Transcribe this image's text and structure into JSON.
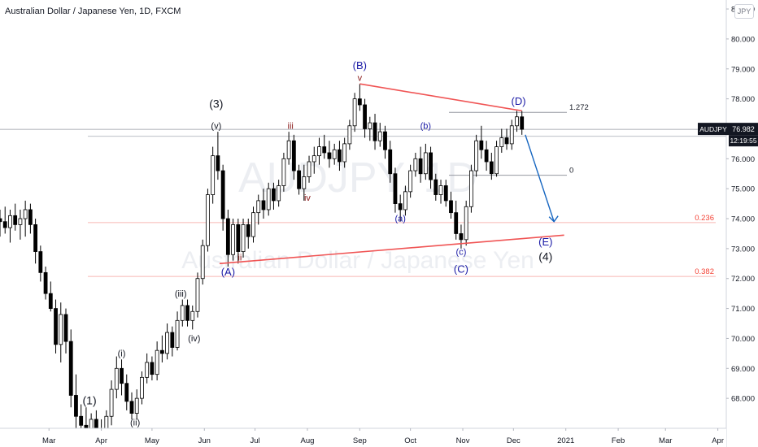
{
  "header": {
    "title": "Australian Dollar / Japanese Yen, 1D, FXCM"
  },
  "currency_badge": "JPY",
  "price_tag": {
    "symbol": "AUDJPY",
    "price": "76.982",
    "countdown": "12:19:55"
  },
  "watermark": {
    "symbol": "AUDJPY, 1D",
    "name": "Australian Dollar / Japanese Yen"
  },
  "colors": {
    "up": "#ffffff",
    "down": "#000000",
    "trendline": "#f05454",
    "wave_blue": "#1a1aa6",
    "wave_dark": "#131722",
    "wave_red": "#8b1a1a",
    "fib": "#f44336",
    "arrow": "#1565c0"
  },
  "chart_data": {
    "type": "candlestick",
    "symbol": "AUDJPY",
    "timeframe": "1D",
    "x_ticks": [
      "Mar",
      "Apr",
      "May",
      "Jun",
      "Jul",
      "Aug",
      "Sep",
      "Oct",
      "Nov",
      "Dec",
      "2021",
      "Feb",
      "Mar",
      "Apr"
    ],
    "y_ticks": [
      "68.000",
      "69.000",
      "70.000",
      "71.000",
      "72.000",
      "73.000",
      "74.000",
      "75.000",
      "76.000",
      "77.000",
      "78.000",
      "79.000",
      "80.000",
      "81.000"
    ],
    "y_range": [
      67.0,
      81.3
    ],
    "last_price": 76.982,
    "fib_levels": [
      {
        "label": "1.272",
        "price": 77.55
      },
      {
        "label": "0",
        "price": 75.45
      },
      {
        "label": "0.236",
        "price": 73.87
      },
      {
        "label": "0.382",
        "price": 72.07
      }
    ],
    "waves": [
      {
        "label": "(1)",
        "date": "2020-03-25",
        "price": 67.8
      },
      {
        "label": "(i)",
        "date": "2020-04-13",
        "price": 69.4
      },
      {
        "label": "(ii)",
        "date": "2020-04-21",
        "price": 67.1
      },
      {
        "label": "(iii)",
        "date": "2020-05-18",
        "price": 71.4
      },
      {
        "label": "(iv)",
        "date": "2020-05-26",
        "price": 69.9
      },
      {
        "label": "(v)",
        "date": "2020-06-08",
        "price": 77.0
      },
      {
        "label": "(3)",
        "date": "2020-06-08",
        "price": 77.7
      },
      {
        "label": "(A)",
        "date": "2020-06-15",
        "price": 72.1
      },
      {
        "label": "ii",
        "date": "2020-06-22",
        "price": 72.6
      },
      {
        "label": "iii",
        "date": "2020-07-22",
        "price": 77.0
      },
      {
        "label": "iv",
        "date": "2020-08-01",
        "price": 74.6
      },
      {
        "label": "(B)",
        "date": "2020-09-01",
        "price": 79.0
      },
      {
        "label": "v",
        "date": "2020-09-01",
        "price": 78.6
      },
      {
        "label": "(a)",
        "date": "2020-09-25",
        "price": 73.9
      },
      {
        "label": "(b)",
        "date": "2020-10-10",
        "price": 77.0
      },
      {
        "label": "(c)",
        "date": "2020-10-31",
        "price": 72.8
      },
      {
        "label": "(C)",
        "date": "2020-10-31",
        "price": 72.2
      },
      {
        "label": "(D)",
        "date": "2020-12-04",
        "price": 77.8
      },
      {
        "label": "(E)",
        "date": "2020-12-20",
        "price": 73.1
      },
      {
        "label": "(4)",
        "date": "2020-12-20",
        "price": 72.6
      }
    ],
    "trendlines": [
      {
        "name": "upper",
        "start": {
          "date": "2020-09-01",
          "price": 78.5
        },
        "end": {
          "date": "2020-12-06",
          "price": 77.6
        }
      },
      {
        "name": "lower",
        "start": {
          "date": "2020-06-10",
          "price": 72.5
        },
        "end": {
          "date": "2020-12-31",
          "price": 73.45
        }
      }
    ],
    "projection_arrow": {
      "start": {
        "date": "2020-12-08",
        "price": 76.8
      },
      "end": {
        "date": "2020-12-25",
        "price": 73.9
      }
    },
    "candles": [
      {
        "date": "2020-02-01",
        "open": 74.0,
        "high": 74.3,
        "low": 73.4,
        "close": 73.9
      },
      {
        "date": "2020-02-04",
        "open": 73.9,
        "high": 74.4,
        "low": 73.5,
        "close": 73.7
      },
      {
        "date": "2020-02-07",
        "open": 73.7,
        "high": 74.3,
        "low": 73.2,
        "close": 74.1
      },
      {
        "date": "2020-02-10",
        "open": 74.1,
        "high": 74.5,
        "low": 73.6,
        "close": 73.8
      },
      {
        "date": "2020-02-13",
        "open": 73.8,
        "high": 74.3,
        "low": 73.3,
        "close": 74.0
      },
      {
        "date": "2020-02-16",
        "open": 74.0,
        "high": 74.6,
        "low": 73.4,
        "close": 74.3
      },
      {
        "date": "2020-02-19",
        "open": 74.3,
        "high": 74.5,
        "low": 73.5,
        "close": 73.8
      },
      {
        "date": "2020-02-22",
        "open": 73.8,
        "high": 74.0,
        "low": 72.5,
        "close": 72.9
      },
      {
        "date": "2020-02-25",
        "open": 72.9,
        "high": 73.1,
        "low": 71.9,
        "close": 72.2
      },
      {
        "date": "2020-02-28",
        "open": 72.2,
        "high": 72.4,
        "low": 71.3,
        "close": 71.5
      },
      {
        "date": "2020-03-02",
        "open": 71.5,
        "high": 71.9,
        "low": 70.9,
        "close": 71.0
      },
      {
        "date": "2020-03-05",
        "open": 71.0,
        "high": 71.3,
        "low": 69.5,
        "close": 69.8
      },
      {
        "date": "2020-03-08",
        "open": 69.8,
        "high": 71.2,
        "low": 69.2,
        "close": 70.8
      },
      {
        "date": "2020-03-11",
        "open": 70.8,
        "high": 71.0,
        "low": 69.5,
        "close": 69.9
      },
      {
        "date": "2020-03-14",
        "open": 69.9,
        "high": 70.3,
        "low": 67.7,
        "close": 68.1
      },
      {
        "date": "2020-03-17",
        "open": 68.1,
        "high": 68.8,
        "low": 66.9,
        "close": 67.4
      },
      {
        "date": "2020-03-20",
        "open": 67.4,
        "high": 67.8,
        "low": 66.6,
        "close": 67.1
      },
      {
        "date": "2020-03-23",
        "open": 67.1,
        "high": 67.7,
        "low": 66.6,
        "close": 66.9
      },
      {
        "date": "2020-03-26",
        "open": 66.9,
        "high": 67.5,
        "low": 66.6,
        "close": 67.3
      },
      {
        "date": "2020-03-29",
        "open": 67.3,
        "high": 67.6,
        "low": 66.6,
        "close": 67.0
      },
      {
        "date": "2020-04-01",
        "open": 67.0,
        "high": 67.3,
        "low": 66.6,
        "close": 66.8
      },
      {
        "date": "2020-04-04",
        "open": 66.8,
        "high": 67.6,
        "low": 66.6,
        "close": 67.4
      },
      {
        "date": "2020-04-07",
        "open": 67.4,
        "high": 68.6,
        "low": 67.1,
        "close": 68.3
      },
      {
        "date": "2020-04-10",
        "open": 68.3,
        "high": 69.4,
        "low": 68.0,
        "close": 69.0
      },
      {
        "date": "2020-04-13",
        "open": 69.0,
        "high": 69.3,
        "low": 68.1,
        "close": 68.5
      },
      {
        "date": "2020-04-16",
        "open": 68.5,
        "high": 68.8,
        "low": 67.6,
        "close": 67.9
      },
      {
        "date": "2020-04-19",
        "open": 67.9,
        "high": 68.2,
        "low": 67.3,
        "close": 67.5
      },
      {
        "date": "2020-04-22",
        "open": 67.5,
        "high": 68.3,
        "low": 67.3,
        "close": 68.0
      },
      {
        "date": "2020-04-25",
        "open": 68.0,
        "high": 68.9,
        "low": 67.8,
        "close": 68.7
      },
      {
        "date": "2020-04-28",
        "open": 68.7,
        "high": 69.5,
        "low": 68.5,
        "close": 69.2
      },
      {
        "date": "2020-05-01",
        "open": 69.2,
        "high": 69.4,
        "low": 68.6,
        "close": 68.8
      },
      {
        "date": "2020-05-04",
        "open": 68.8,
        "high": 69.9,
        "low": 68.6,
        "close": 69.6
      },
      {
        "date": "2020-05-07",
        "open": 69.6,
        "high": 70.1,
        "low": 69.2,
        "close": 69.5
      },
      {
        "date": "2020-05-10",
        "open": 69.5,
        "high": 70.5,
        "low": 69.3,
        "close": 70.2
      },
      {
        "date": "2020-05-13",
        "open": 70.2,
        "high": 70.4,
        "low": 69.4,
        "close": 69.7
      },
      {
        "date": "2020-05-16",
        "open": 69.7,
        "high": 70.9,
        "low": 69.6,
        "close": 70.6
      },
      {
        "date": "2020-05-19",
        "open": 70.6,
        "high": 71.3,
        "low": 70.4,
        "close": 71.1
      },
      {
        "date": "2020-05-22",
        "open": 71.1,
        "high": 71.3,
        "low": 70.4,
        "close": 70.6
      },
      {
        "date": "2020-05-25",
        "open": 70.6,
        "high": 71.1,
        "low": 70.3,
        "close": 70.9
      },
      {
        "date": "2020-05-28",
        "open": 70.9,
        "high": 72.2,
        "low": 70.7,
        "close": 72.0
      },
      {
        "date": "2020-05-31",
        "open": 72.0,
        "high": 73.3,
        "low": 71.8,
        "close": 73.1
      },
      {
        "date": "2020-06-03",
        "open": 73.1,
        "high": 75.0,
        "low": 72.9,
        "close": 74.8
      },
      {
        "date": "2020-06-06",
        "open": 74.8,
        "high": 76.4,
        "low": 74.5,
        "close": 76.1
      },
      {
        "date": "2020-06-09",
        "open": 76.1,
        "high": 76.9,
        "low": 75.3,
        "close": 75.6
      },
      {
        "date": "2020-06-12",
        "open": 75.6,
        "high": 75.8,
        "low": 73.6,
        "close": 74.0
      },
      {
        "date": "2020-06-15",
        "open": 74.0,
        "high": 74.3,
        "low": 72.4,
        "close": 72.8
      },
      {
        "date": "2020-06-18",
        "open": 72.8,
        "high": 74.0,
        "low": 72.6,
        "close": 73.8
      },
      {
        "date": "2020-06-21",
        "open": 73.8,
        "high": 74.0,
        "low": 72.5,
        "close": 72.9
      },
      {
        "date": "2020-06-24",
        "open": 72.9,
        "high": 74.0,
        "low": 72.7,
        "close": 73.8
      },
      {
        "date": "2020-06-27",
        "open": 73.8,
        "high": 74.0,
        "low": 73.0,
        "close": 73.4
      },
      {
        "date": "2020-06-30",
        "open": 73.4,
        "high": 74.4,
        "low": 73.2,
        "close": 74.2
      },
      {
        "date": "2020-07-03",
        "open": 74.2,
        "high": 74.8,
        "low": 73.8,
        "close": 74.6
      },
      {
        "date": "2020-07-06",
        "open": 74.6,
        "high": 75.0,
        "low": 74.0,
        "close": 74.3
      },
      {
        "date": "2020-07-09",
        "open": 74.3,
        "high": 75.2,
        "low": 74.1,
        "close": 75.0
      },
      {
        "date": "2020-07-12",
        "open": 75.0,
        "high": 75.2,
        "low": 74.3,
        "close": 74.6
      },
      {
        "date": "2020-07-15",
        "open": 74.6,
        "high": 75.3,
        "low": 74.4,
        "close": 75.1
      },
      {
        "date": "2020-07-18",
        "open": 75.1,
        "high": 76.2,
        "low": 74.9,
        "close": 76.0
      },
      {
        "date": "2020-07-21",
        "open": 76.0,
        "high": 76.9,
        "low": 75.8,
        "close": 76.6
      },
      {
        "date": "2020-07-24",
        "open": 76.6,
        "high": 76.8,
        "low": 75.3,
        "close": 75.6
      },
      {
        "date": "2020-07-27",
        "open": 75.6,
        "high": 75.8,
        "low": 74.8,
        "close": 75.0
      },
      {
        "date": "2020-07-30",
        "open": 75.0,
        "high": 75.8,
        "low": 74.6,
        "close": 75.4
      },
      {
        "date": "2020-08-02",
        "open": 75.4,
        "high": 76.1,
        "low": 75.2,
        "close": 75.9
      },
      {
        "date": "2020-08-05",
        "open": 75.9,
        "high": 76.4,
        "low": 75.5,
        "close": 76.1
      },
      {
        "date": "2020-08-08",
        "open": 76.1,
        "high": 76.7,
        "low": 75.8,
        "close": 76.4
      },
      {
        "date": "2020-08-11",
        "open": 76.4,
        "high": 76.8,
        "low": 76.0,
        "close": 76.2
      },
      {
        "date": "2020-08-14",
        "open": 76.2,
        "high": 76.6,
        "low": 75.7,
        "close": 76.0
      },
      {
        "date": "2020-08-17",
        "open": 76.0,
        "high": 76.5,
        "low": 75.8,
        "close": 76.3
      },
      {
        "date": "2020-08-20",
        "open": 76.3,
        "high": 76.6,
        "low": 75.6,
        "close": 75.9
      },
      {
        "date": "2020-08-23",
        "open": 75.9,
        "high": 76.7,
        "low": 75.7,
        "close": 76.5
      },
      {
        "date": "2020-08-26",
        "open": 76.5,
        "high": 77.3,
        "low": 76.3,
        "close": 77.1
      },
      {
        "date": "2020-08-29",
        "open": 77.1,
        "high": 78.2,
        "low": 76.9,
        "close": 78.0
      },
      {
        "date": "2020-09-01",
        "open": 78.0,
        "high": 78.5,
        "low": 77.6,
        "close": 77.8
      },
      {
        "date": "2020-09-04",
        "open": 77.8,
        "high": 78.0,
        "low": 76.7,
        "close": 77.0
      },
      {
        "date": "2020-09-07",
        "open": 77.0,
        "high": 77.4,
        "low": 76.6,
        "close": 77.2
      },
      {
        "date": "2020-09-10",
        "open": 77.2,
        "high": 77.5,
        "low": 76.3,
        "close": 76.6
      },
      {
        "date": "2020-09-13",
        "open": 76.6,
        "high": 77.2,
        "low": 76.4,
        "close": 76.9
      },
      {
        "date": "2020-09-16",
        "open": 76.9,
        "high": 77.1,
        "low": 76.0,
        "close": 76.3
      },
      {
        "date": "2020-09-19",
        "open": 76.3,
        "high": 76.6,
        "low": 75.2,
        "close": 75.5
      },
      {
        "date": "2020-09-22",
        "open": 75.5,
        "high": 75.7,
        "low": 74.2,
        "close": 74.5
      },
      {
        "date": "2020-09-25",
        "open": 74.5,
        "high": 74.8,
        "low": 73.9,
        "close": 74.3
      },
      {
        "date": "2020-09-28",
        "open": 74.3,
        "high": 75.1,
        "low": 74.1,
        "close": 74.9
      },
      {
        "date": "2020-10-01",
        "open": 74.9,
        "high": 75.8,
        "low": 74.7,
        "close": 75.6
      },
      {
        "date": "2020-10-04",
        "open": 75.6,
        "high": 76.2,
        "low": 75.4,
        "close": 76.0
      },
      {
        "date": "2020-10-07",
        "open": 76.0,
        "high": 76.4,
        "low": 75.2,
        "close": 75.5
      },
      {
        "date": "2020-10-10",
        "open": 75.5,
        "high": 76.5,
        "low": 75.3,
        "close": 76.2
      },
      {
        "date": "2020-10-13",
        "open": 76.2,
        "high": 76.4,
        "low": 75.0,
        "close": 75.3
      },
      {
        "date": "2020-10-16",
        "open": 75.3,
        "high": 75.5,
        "low": 74.6,
        "close": 74.8
      },
      {
        "date": "2020-10-19",
        "open": 74.8,
        "high": 75.3,
        "low": 74.5,
        "close": 75.1
      },
      {
        "date": "2020-10-22",
        "open": 75.1,
        "high": 75.3,
        "low": 74.4,
        "close": 74.6
      },
      {
        "date": "2020-10-25",
        "open": 74.6,
        "high": 74.9,
        "low": 74.0,
        "close": 74.2
      },
      {
        "date": "2020-10-28",
        "open": 74.2,
        "high": 74.6,
        "low": 73.3,
        "close": 73.5
      },
      {
        "date": "2020-10-31",
        "open": 73.5,
        "high": 73.8,
        "low": 73.0,
        "close": 73.3
      },
      {
        "date": "2020-11-03",
        "open": 73.3,
        "high": 74.6,
        "low": 73.1,
        "close": 74.4
      },
      {
        "date": "2020-11-06",
        "open": 74.4,
        "high": 75.8,
        "low": 74.2,
        "close": 75.6
      },
      {
        "date": "2020-11-09",
        "open": 75.6,
        "high": 76.8,
        "low": 75.4,
        "close": 76.6
      },
      {
        "date": "2020-11-12",
        "open": 76.6,
        "high": 77.1,
        "low": 76.0,
        "close": 76.3
      },
      {
        "date": "2020-11-15",
        "open": 76.3,
        "high": 76.6,
        "low": 75.6,
        "close": 75.9
      },
      {
        "date": "2020-11-18",
        "open": 75.9,
        "high": 76.2,
        "low": 75.3,
        "close": 75.5
      },
      {
        "date": "2020-11-21",
        "open": 75.5,
        "high": 76.6,
        "low": 75.4,
        "close": 76.4
      },
      {
        "date": "2020-11-24",
        "open": 76.4,
        "high": 77.0,
        "low": 76.2,
        "close": 76.7
      },
      {
        "date": "2020-11-27",
        "open": 76.7,
        "high": 77.0,
        "low": 76.3,
        "close": 76.5
      },
      {
        "date": "2020-11-30",
        "open": 76.5,
        "high": 77.3,
        "low": 76.3,
        "close": 77.1
      },
      {
        "date": "2020-12-03",
        "open": 77.1,
        "high": 77.6,
        "low": 76.9,
        "close": 77.4
      },
      {
        "date": "2020-12-06",
        "open": 77.4,
        "high": 77.6,
        "low": 76.8,
        "close": 76.982
      }
    ]
  }
}
